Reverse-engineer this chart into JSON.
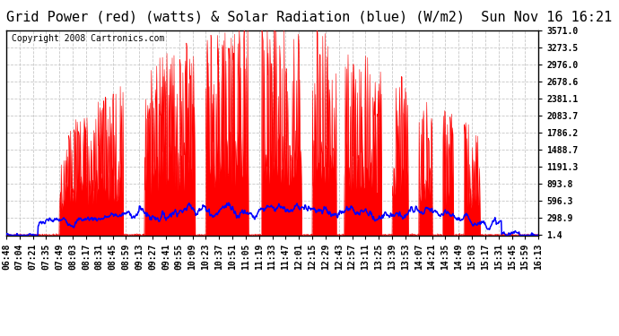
{
  "title": "Grid Power (red) (watts) & Solar Radiation (blue) (W/m2)  Sun Nov 16 16:21",
  "copyright": "Copyright 2008 Cartronics.com",
  "ylabel_right_ticks": [
    1.4,
    298.9,
    596.3,
    893.8,
    1191.3,
    1488.7,
    1786.2,
    2083.7,
    2381.1,
    2678.6,
    2976.0,
    3273.5,
    3571.0
  ],
  "ylim": [
    0,
    3571.0
  ],
  "bg_color": "#ffffff",
  "plot_bg_color": "#ffffff",
  "grid_color": "#c8c8c8",
  "red_color": "#ff0000",
  "blue_color": "#0000ff",
  "title_fontsize": 11,
  "copyright_fontsize": 7,
  "tick_fontsize": 7,
  "time_labels": [
    "06:48",
    "07:04",
    "07:21",
    "07:35",
    "07:49",
    "08:03",
    "08:17",
    "08:31",
    "08:45",
    "08:59",
    "09:13",
    "09:27",
    "09:41",
    "09:55",
    "10:09",
    "10:23",
    "10:37",
    "10:51",
    "11:05",
    "11:19",
    "11:33",
    "11:47",
    "12:01",
    "12:15",
    "12:29",
    "12:43",
    "12:57",
    "13:11",
    "13:25",
    "13:39",
    "13:53",
    "14:07",
    "14:21",
    "14:35",
    "14:49",
    "15:03",
    "15:17",
    "15:31",
    "15:45",
    "15:59",
    "16:13"
  ]
}
